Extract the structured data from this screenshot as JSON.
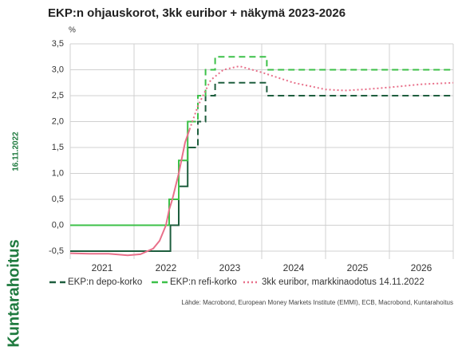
{
  "chart_data": {
    "type": "line",
    "title": "EKP:n ohjauskorot, 3kk euribor + näkymä 2023-2026",
    "y_unit": "%",
    "side_date": "16.11.2022",
    "brand": "Kuntarahoitus",
    "source": "Lähde: Macrobond, European Money Markets Institute (EMMI), ECB, Macrobond, Kuntarahoitus",
    "categories": [
      "2021",
      "2022",
      "2023",
      "2024",
      "2025",
      "2026"
    ],
    "xlim": [
      2021,
      2027
    ],
    "xticks": [
      2021,
      2022,
      2023,
      2024,
      2025,
      2026,
      2027
    ],
    "ylim": [
      -0.5,
      3.5
    ],
    "yticks": [
      {
        "value": -0.5,
        "label": "-0,5"
      },
      {
        "value": 0,
        "label": "0,0"
      },
      {
        "value": 0.5,
        "label": "0,5"
      },
      {
        "value": 1,
        "label": "1,0"
      },
      {
        "value": 1.5,
        "label": "1,5"
      },
      {
        "value": 2,
        "label": "2,0"
      },
      {
        "value": 2.5,
        "label": "2,5"
      },
      {
        "value": 3,
        "label": "3,0"
      },
      {
        "value": 3.5,
        "label": "3,5"
      }
    ],
    "grid": true,
    "forecast_from": 2022.87,
    "series": [
      {
        "name": "EKP:n depo-korko",
        "color": "#1e5e3e",
        "dash": "8,5",
        "x": [
          2021,
          2022.57,
          2022.57,
          2022.7,
          2022.7,
          2022.84,
          2022.84,
          2022.87,
          2023.0,
          2023.0,
          2023.12,
          2023.12,
          2023.27,
          2023.27,
          2024.08,
          2024.08,
          2027
        ],
        "values": [
          -0.5,
          -0.5,
          0,
          0,
          0.75,
          0.75,
          1.5,
          1.5,
          1.5,
          2.0,
          2.0,
          2.5,
          2.5,
          2.75,
          2.75,
          2.5,
          2.5
        ]
      },
      {
        "name": "EKP:n refi-korko",
        "color": "#3cc048",
        "dash": "8,5",
        "x": [
          2021,
          2022.55,
          2022.55,
          2022.7,
          2022.7,
          2022.84,
          2022.84,
          2022.87,
          2023.0,
          2023.0,
          2023.12,
          2023.12,
          2023.27,
          2023.27,
          2024.08,
          2024.08,
          2027
        ],
        "values": [
          0,
          0,
          0.5,
          0.5,
          1.25,
          1.25,
          2.0,
          2.0,
          2.0,
          2.5,
          2.5,
          3.0,
          3.0,
          3.25,
          3.25,
          3.0,
          3.0
        ]
      },
      {
        "name": "3kk euribor, markkinaodotus 14.11.2022",
        "color": "#e8708a",
        "dash": "2,3",
        "x": [
          2021,
          2021.3,
          2021.6,
          2021.9,
          2022.1,
          2022.3,
          2022.4,
          2022.5,
          2022.55,
          2022.6,
          2022.7,
          2022.8,
          2022.87,
          2023.0,
          2023.2,
          2023.4,
          2023.65,
          2024.0,
          2024.5,
          2025.0,
          2025.3,
          2025.6,
          2026.0,
          2026.5,
          2027
        ],
        "values": [
          -0.54,
          -0.55,
          -0.55,
          -0.58,
          -0.56,
          -0.45,
          -0.3,
          0.0,
          0.3,
          0.5,
          1.0,
          1.6,
          1.85,
          2.3,
          2.8,
          3.0,
          3.07,
          2.95,
          2.75,
          2.62,
          2.6,
          2.62,
          2.66,
          2.72,
          2.75
        ]
      }
    ]
  }
}
